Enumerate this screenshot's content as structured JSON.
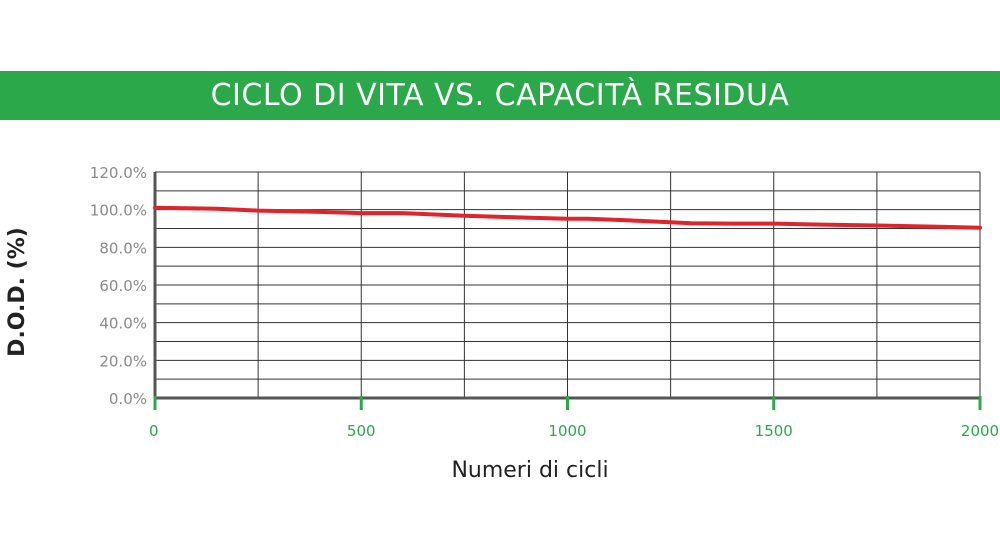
{
  "colors": {
    "banner": "#2ba84a",
    "series": "#e0242c",
    "axis": "#555555",
    "x_ticks": "#2ba84a",
    "grid": "#333333"
  },
  "chart_data": {
    "type": "line",
    "title": "CICLO DI VITA VS. CAPACITÀ RESIDUA",
    "xlabel": "Numeri di cicli",
    "ylabel": "D.O.D. (%)",
    "xlim": [
      0,
      2000
    ],
    "ylim": [
      0,
      120
    ],
    "x_ticks": [
      "0",
      "500",
      "1000",
      "1500",
      "2000"
    ],
    "x_tick_values": [
      0,
      500,
      1000,
      1500,
      2000
    ],
    "y_ticks": [
      "0.0%",
      "20.0%",
      "40.0%",
      "60.0%",
      "80.0%",
      "100.0%",
      "120.0%"
    ],
    "y_tick_values": [
      0,
      20,
      40,
      60,
      80,
      100,
      120
    ],
    "grid": true,
    "series": [
      {
        "x": [
          0,
          150,
          250,
          400,
          500,
          600,
          750,
          900,
          1000,
          1050,
          1150,
          1300,
          1400,
          1500,
          1600,
          1750,
          1900,
          2000
        ],
        "values": [
          101,
          100.5,
          99.5,
          98.8,
          98.2,
          98.2,
          96.8,
          95.8,
          95.2,
          95.2,
          94.3,
          92.8,
          92.6,
          92.6,
          92.1,
          91.6,
          90.9,
          90.4
        ]
      }
    ]
  }
}
